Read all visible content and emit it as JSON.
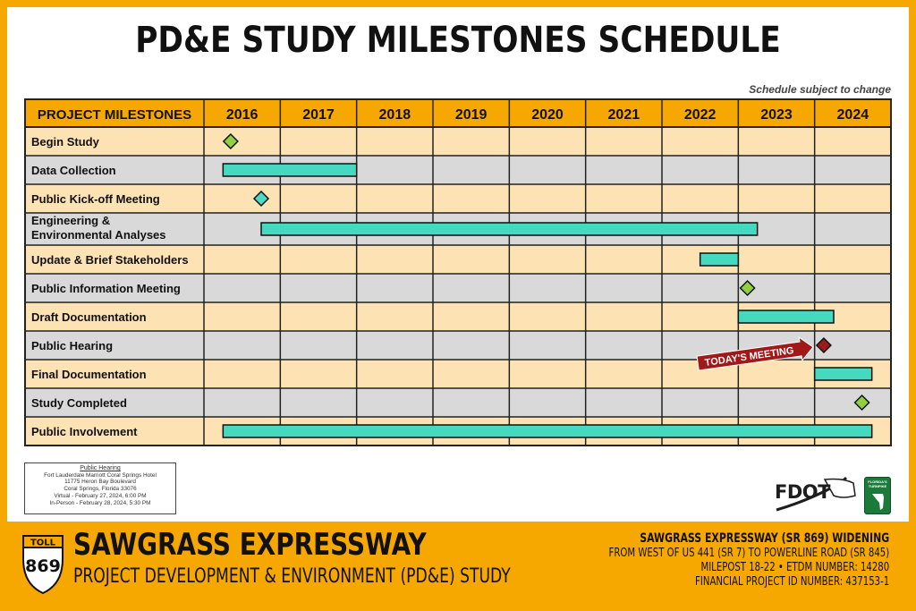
{
  "title": "PD&E STUDY MILESTONES SCHEDULE",
  "subject_note": "Schedule subject to change",
  "chart_data": {
    "type": "gantt",
    "header_label": "PROJECT MILESTONES",
    "years": [
      "2016",
      "2017",
      "2018",
      "2019",
      "2020",
      "2021",
      "2022",
      "2023",
      "2024"
    ],
    "rows": [
      {
        "label": "Begin Study",
        "kind": "milestone",
        "at": 2016.35,
        "color": "#8fd13f"
      },
      {
        "label": "Data Collection",
        "kind": "bar",
        "start": 2016.25,
        "end": 2018.0
      },
      {
        "label": "Public Kick-off Meeting",
        "kind": "milestone",
        "at": 2016.75,
        "color": "#4fd8c4"
      },
      {
        "label": "Engineering & Environmental Analyses",
        "label_lines": [
          "Engineering &",
          "Environmental Analyses"
        ],
        "kind": "bar",
        "start": 2016.75,
        "end": 2023.25
      },
      {
        "label": "Update & Brief Stakeholders",
        "kind": "bar",
        "start": 2022.5,
        "end": 2023.0
      },
      {
        "label": "Public Information Meeting",
        "kind": "milestone",
        "at": 2023.12,
        "color": "#8fd13f"
      },
      {
        "label": "Draft Documentation",
        "kind": "bar",
        "start": 2023.0,
        "end": 2024.25
      },
      {
        "label": "Public Hearing",
        "kind": "milestone",
        "at": 2024.12,
        "color": "#9b1c1c",
        "callout": "TODAY'S MEETING"
      },
      {
        "label": "Final Documentation",
        "kind": "bar",
        "start": 2024.0,
        "end": 2024.75
      },
      {
        "label": "Study Completed",
        "kind": "milestone",
        "at": 2024.62,
        "color": "#8fd13f"
      },
      {
        "label": "Public Involvement",
        "kind": "bar",
        "start": 2016.25,
        "end": 2024.75
      }
    ],
    "colors": {
      "header": "#f7a800",
      "row_a": "#fde2b4",
      "row_b": "#d9d9d9",
      "bar": "#45d9c0",
      "grid": "#222222"
    }
  },
  "hearing_info": {
    "heading": "Public Hearing",
    "lines": [
      "Fort Lauderdale Marriott Coral Springs Hotel",
      "11775 Heron Bay Boulevard",
      "Coral Springs, Florida 33076",
      "Virtual - February 27, 2024, 6:00 PM",
      "In-Person - February 28, 2024, 5:30 PM"
    ]
  },
  "logos": {
    "fdot": "FDOT",
    "turnpike": "FLORIDA'S TURNPIKE",
    "shield_top": "TOLL",
    "shield_number": "869"
  },
  "banner": {
    "title": "SAWGRASS EXPRESSWAY",
    "subtitle": "PROJECT DEVELOPMENT & ENVIRONMENT (PD&E) STUDY",
    "right_title": "SAWGRASS EXPRESSWAY (SR 869) WIDENING",
    "right_lines": [
      "FROM WEST OF US 441 (SR 7) TO POWERLINE ROAD (SR 845)",
      "MILEPOST 18-22 • ETDM NUMBER: 14280",
      "FINANCIAL PROJECT ID NUMBER: 437153-1"
    ]
  }
}
